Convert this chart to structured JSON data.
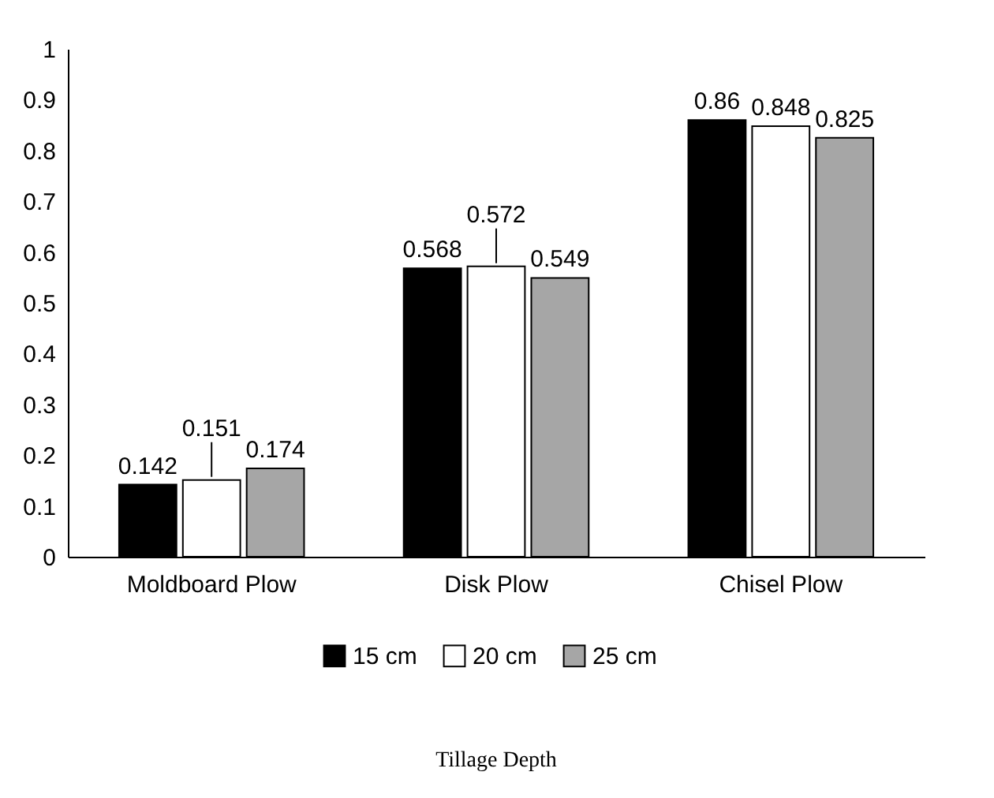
{
  "chart_data": {
    "type": "bar",
    "annotations": [
      "Tillage Depth"
    ],
    "categories": [
      "Moldboard Plow",
      "Disk Plow",
      "Chisel Plow"
    ],
    "series": [
      {
        "name": "15 cm",
        "color": "#000000",
        "values": [
          0.142,
          0.568,
          0.86
        ]
      },
      {
        "name": "20 cm",
        "color": "#ffffff",
        "values": [
          0.151,
          0.572,
          0.848
        ]
      },
      {
        "name": "25 cm",
        "color": "#a6a6a6",
        "values": [
          0.174,
          0.549,
          0.825
        ]
      }
    ],
    "ylim": [
      0,
      1
    ],
    "yticks": [
      0,
      0.1,
      0.2,
      0.3,
      0.4,
      0.5,
      0.6,
      0.7,
      0.8,
      0.9,
      1
    ],
    "grid": false,
    "legend": "bottom",
    "data_labels": true
  }
}
